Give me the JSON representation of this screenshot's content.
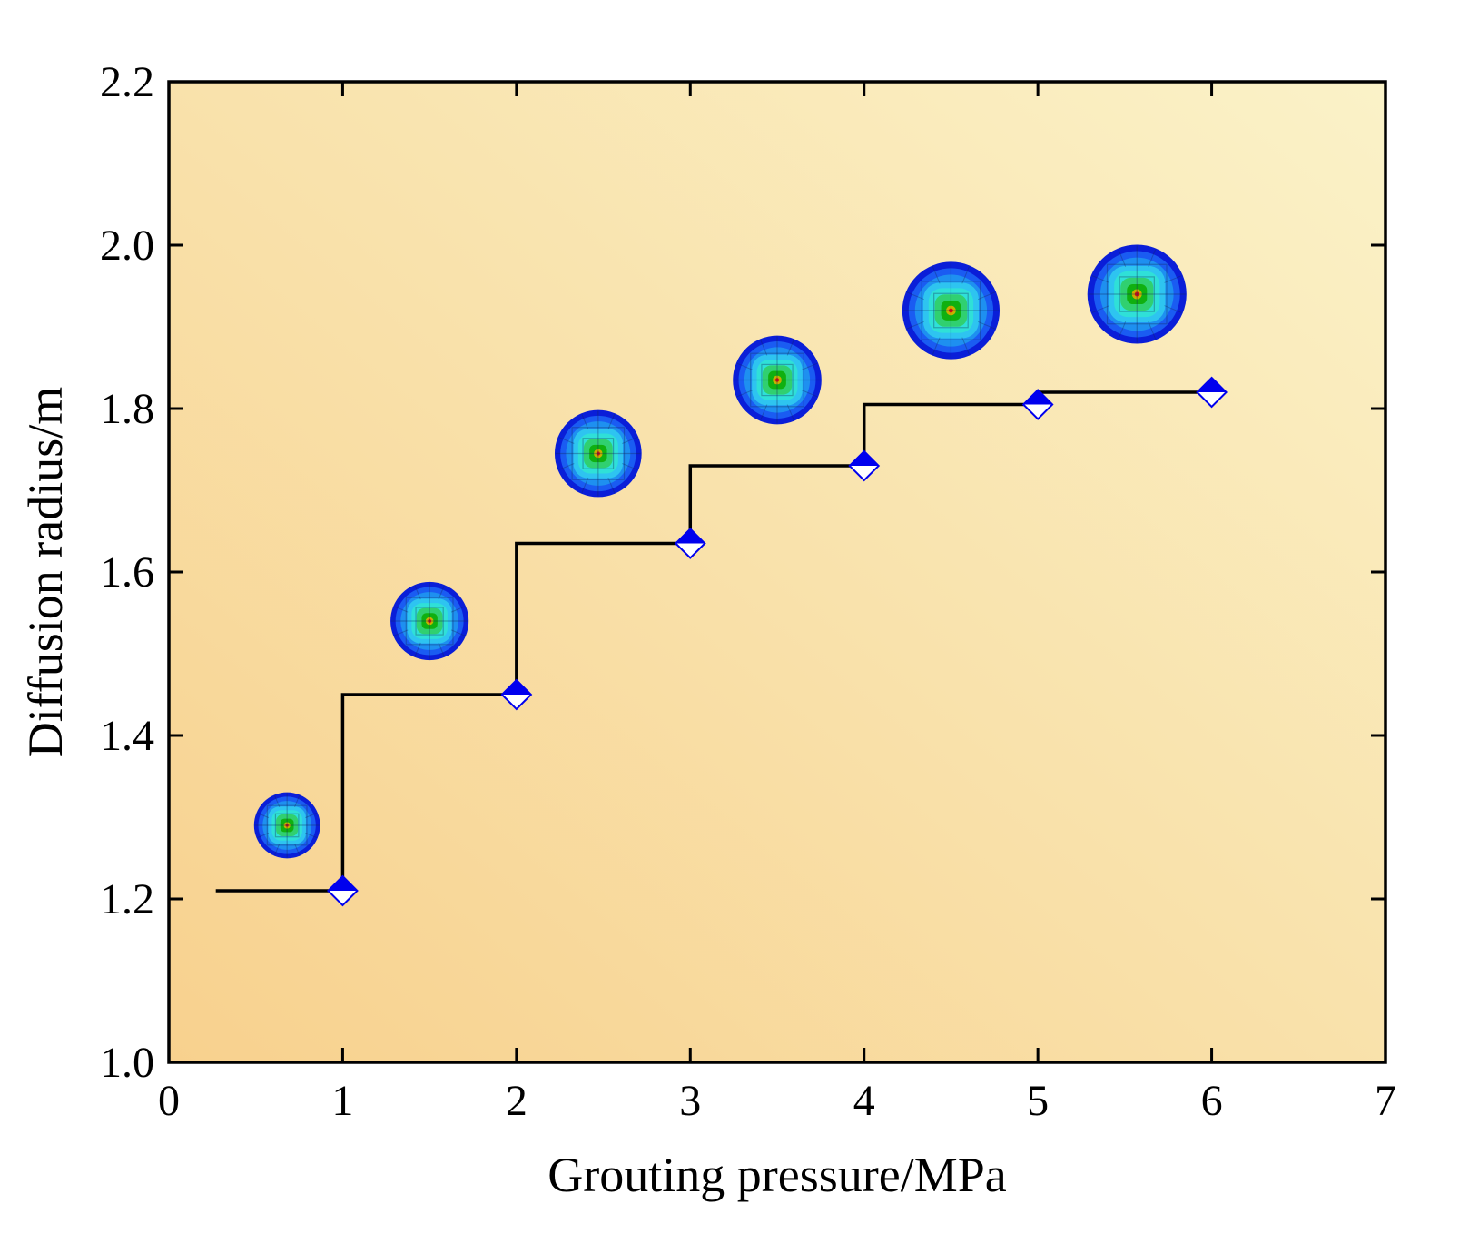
{
  "chart_data": {
    "type": "line",
    "step": true,
    "title": "",
    "xlabel": "Grouting pressure/MPa",
    "ylabel": "Diffusion radius/m",
    "xlim": [
      0,
      7
    ],
    "ylim": [
      1.0,
      2.2
    ],
    "xticks": [
      0,
      1,
      2,
      3,
      4,
      5,
      6,
      7
    ],
    "yticks": [
      1.0,
      1.2,
      1.4,
      1.6,
      1.8,
      2.0,
      2.2
    ],
    "x_tick_labels": [
      "0",
      "1",
      "2",
      "3",
      "4",
      "5",
      "6",
      "7"
    ],
    "y_tick_labels": [
      "1.0",
      "1.2",
      "1.4",
      "1.6",
      "1.8",
      "2.0",
      "2.2"
    ],
    "grid": false,
    "series": [
      {
        "name": "Diffusion radius",
        "x": [
          1,
          2,
          3,
          4,
          5,
          6
        ],
        "values": [
          1.21,
          1.45,
          1.635,
          1.73,
          1.805,
          1.82
        ],
        "step_start_x": 0.27,
        "marker": "half-filled-diamond",
        "color": "#0000ee"
      }
    ],
    "insets": [
      {
        "x": 0.68,
        "y": 1.29,
        "r": 0.38
      },
      {
        "x": 1.5,
        "y": 1.54,
        "r": 0.45
      },
      {
        "x": 2.47,
        "y": 1.745,
        "r": 0.5
      },
      {
        "x": 3.5,
        "y": 1.835,
        "r": 0.51
      },
      {
        "x": 4.5,
        "y": 1.92,
        "r": 0.56
      },
      {
        "x": 5.57,
        "y": 1.94,
        "r": 0.57
      }
    ],
    "colors": {
      "bg_top_right": "#faf2c8",
      "bg_bottom_left": "#f8d18e",
      "line": "#000000",
      "marker": "#0000ee",
      "contour": [
        "#0a1ed8",
        "#1a5cf2",
        "#1e90f0",
        "#2ec4f0",
        "#2fe0d8",
        "#30d070",
        "#10b010",
        "#c8b000",
        "#e01010"
      ]
    }
  }
}
